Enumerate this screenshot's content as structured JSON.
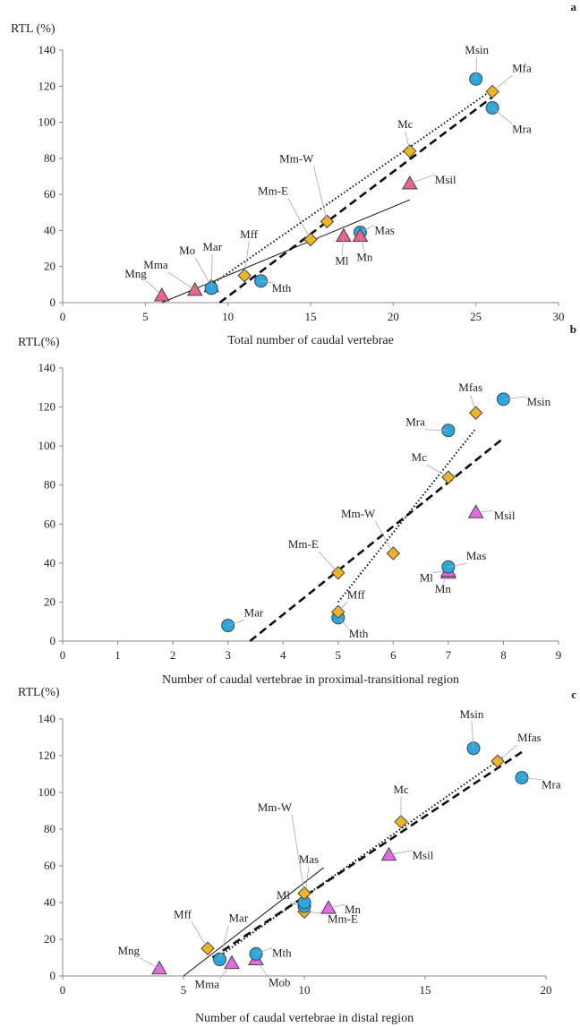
{
  "chart_data": [
    {
      "type": "scatter",
      "panel": "a",
      "ylabel": "RTL (%)",
      "xlabel": "Total number of caudal vertebrae",
      "xlim": [
        0,
        30
      ],
      "ylim": [
        0,
        140
      ],
      "xticks": [
        0,
        5,
        10,
        15,
        20,
        25,
        30
      ],
      "yticks": [
        0,
        20,
        40,
        60,
        80,
        100,
        120,
        140
      ],
      "grid": false,
      "points": [
        {
          "label": "Mng",
          "x": 6,
          "y": 4,
          "marker": "triangle"
        },
        {
          "label": "Mma",
          "x": 8,
          "y": 7,
          "marker": "triangle"
        },
        {
          "label": "Mo",
          "x": 9,
          "y": 9,
          "marker": "triangle"
        },
        {
          "label": "Mar",
          "x": 9,
          "y": 8,
          "marker": "circle"
        },
        {
          "label": "Mff",
          "x": 11,
          "y": 15,
          "marker": "diamond"
        },
        {
          "label": "Mth",
          "x": 12,
          "y": 12,
          "marker": "circle"
        },
        {
          "label": "Mm-E",
          "x": 15,
          "y": 35,
          "marker": "diamond"
        },
        {
          "label": "Mm-W",
          "x": 16,
          "y": 45,
          "marker": "diamond"
        },
        {
          "label": "Ml",
          "x": 17,
          "y": 37,
          "marker": "triangle"
        },
        {
          "label": "Mas",
          "x": 18,
          "y": 39,
          "marker": "circle"
        },
        {
          "label": "Mn",
          "x": 18,
          "y": 37,
          "marker": "triangle"
        },
        {
          "label": "Mc",
          "x": 21,
          "y": 84,
          "marker": "diamond"
        },
        {
          "label": "Msil",
          "x": 21,
          "y": 66,
          "marker": "triangle"
        },
        {
          "label": "Msin",
          "x": 25,
          "y": 124,
          "marker": "circle"
        },
        {
          "label": "Mfa",
          "x": 26,
          "y": 117,
          "marker": "diamond"
        },
        {
          "label": "Mra",
          "x": 26,
          "y": 108,
          "marker": "circle"
        }
      ],
      "lines": [
        {
          "style": "solid",
          "x": [
            6,
            21
          ],
          "y": [
            0,
            57
          ]
        },
        {
          "style": "dashed",
          "x": [
            9.5,
            26
          ],
          "y": [
            0,
            114
          ]
        },
        {
          "style": "dotted",
          "x": [
            9,
            26
          ],
          "y": [
            10,
            118
          ]
        }
      ]
    },
    {
      "type": "scatter",
      "panel": "b",
      "ylabel": "RTL(%)",
      "xlabel": "Number of caudal vertebrae in proximal-transitional  region",
      "xlim": [
        0,
        9
      ],
      "ylim": [
        0,
        140
      ],
      "xticks": [
        0,
        1,
        2,
        3,
        4,
        5,
        6,
        7,
        8,
        9
      ],
      "yticks": [
        0,
        20,
        40,
        60,
        80,
        100,
        120,
        140
      ],
      "grid": false,
      "points": [
        {
          "label": "Mar",
          "x": 3,
          "y": 8,
          "marker": "circle"
        },
        {
          "label": "Mth",
          "x": 5,
          "y": 12,
          "marker": "circle"
        },
        {
          "label": "Mff",
          "x": 5,
          "y": 15,
          "marker": "diamond"
        },
        {
          "label": "Mm-E",
          "x": 5,
          "y": 35,
          "marker": "diamond"
        },
        {
          "label": "Mm-W",
          "x": 6,
          "y": 45,
          "marker": "diamond"
        },
        {
          "label": "Mn",
          "x": 7,
          "y": 35,
          "marker": "triangle"
        },
        {
          "label": "Ml",
          "x": 7,
          "y": 36,
          "marker": "triangle"
        },
        {
          "label": "Mas",
          "x": 7,
          "y": 38,
          "marker": "circle"
        },
        {
          "label": "Mc",
          "x": 7,
          "y": 84,
          "marker": "diamond"
        },
        {
          "label": "Mra",
          "x": 7,
          "y": 108,
          "marker": "circle"
        },
        {
          "label": "Msil",
          "x": 7.5,
          "y": 66,
          "marker": "triangle"
        },
        {
          "label": "Mfas",
          "x": 7.5,
          "y": 117,
          "marker": "diamond"
        },
        {
          "label": "Msin",
          "x": 8,
          "y": 124,
          "marker": "circle"
        }
      ],
      "lines": [
        {
          "style": "dashed",
          "x": [
            3.4,
            8
          ],
          "y": [
            0,
            104
          ]
        },
        {
          "style": "dotted",
          "x": [
            5,
            7.5
          ],
          "y": [
            20,
            109
          ]
        }
      ]
    },
    {
      "type": "scatter",
      "panel": "c",
      "ylabel": "RTL(%)",
      "xlabel": "Number of caudal vertebrae in distal region",
      "xlim": [
        0,
        20
      ],
      "ylim": [
        0,
        140
      ],
      "xticks": [
        0,
        5,
        10,
        15,
        20
      ],
      "yticks": [
        0,
        20,
        40,
        60,
        80,
        100,
        120,
        140
      ],
      "grid": false,
      "points": [
        {
          "label": "Mng",
          "x": 4,
          "y": 4,
          "marker": "triangle"
        },
        {
          "label": "Mff",
          "x": 6,
          "y": 15,
          "marker": "diamond"
        },
        {
          "label": "Mar",
          "x": 6.5,
          "y": 9,
          "marker": "circle"
        },
        {
          "label": "Mma",
          "x": 7,
          "y": 7,
          "marker": "triangle"
        },
        {
          "label": "Mob",
          "x": 8,
          "y": 9,
          "marker": "triangle"
        },
        {
          "label": "Mth",
          "x": 8,
          "y": 12,
          "marker": "circle"
        },
        {
          "label": "Mm-E",
          "x": 10,
          "y": 35,
          "marker": "diamond"
        },
        {
          "label": "Ml",
          "x": 10,
          "y": 38,
          "marker": "circle"
        },
        {
          "label": "Mas",
          "x": 10,
          "y": 40,
          "marker": "circle"
        },
        {
          "label": "Mm-W",
          "x": 10,
          "y": 45,
          "marker": "diamond"
        },
        {
          "label": "Mn",
          "x": 11,
          "y": 37,
          "marker": "triangle"
        },
        {
          "label": "Msil",
          "x": 13.5,
          "y": 66,
          "marker": "triangle"
        },
        {
          "label": "Mc",
          "x": 14,
          "y": 84,
          "marker": "diamond"
        },
        {
          "label": "Msin",
          "x": 17,
          "y": 124,
          "marker": "circle"
        },
        {
          "label": "Mfas",
          "x": 18,
          "y": 117,
          "marker": "diamond"
        },
        {
          "label": "Mra",
          "x": 19,
          "y": 108,
          "marker": "circle"
        }
      ],
      "lines": [
        {
          "style": "solid",
          "x": [
            5,
            10.8
          ],
          "y": [
            0,
            59
          ]
        },
        {
          "style": "dashed",
          "x": [
            6.2,
            19
          ],
          "y": [
            10,
            122
          ]
        },
        {
          "style": "dotted",
          "x": [
            6.4,
            18.2
          ],
          "y": [
            10,
            119
          ]
        }
      ]
    }
  ],
  "colors": {
    "circle": "#29a8e0",
    "diamond": "#f2b51e",
    "triangle_panel_a": "#e9638a",
    "triangle_panels_bc": "#e766e6",
    "stroke": "#444444"
  }
}
